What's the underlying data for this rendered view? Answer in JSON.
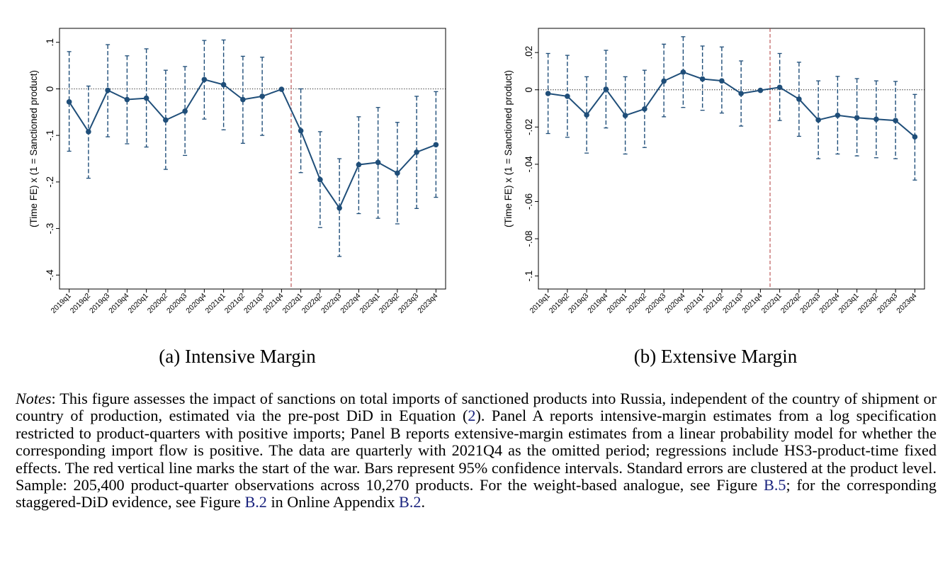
{
  "chart_data": [
    {
      "type": "line",
      "caption": "(a) Intensive Margin",
      "ylabel": "(Time FE) x (1 = Sanctioned product)",
      "categories": [
        "2019q1",
        "2019q2",
        "2019q3",
        "2019q4",
        "2020q1",
        "2020q2",
        "2020q3",
        "2020q4",
        "2021q1",
        "2021q2",
        "2021q3",
        "2021q4",
        "2022q1",
        "2022q2",
        "2022q3",
        "2022q4",
        "2023q1",
        "2023q2",
        "2023q3",
        "2023q4"
      ],
      "values": [
        -0.028,
        -0.092,
        -0.003,
        -0.023,
        -0.02,
        -0.067,
        -0.048,
        0.02,
        0.009,
        -0.023,
        -0.016,
        -0.001,
        -0.09,
        -0.195,
        -0.256,
        -0.163,
        -0.158,
        -0.181,
        -0.136,
        -0.12
      ],
      "ci_low": [
        -0.134,
        -0.192,
        -0.103,
        -0.118,
        -0.125,
        -0.173,
        -0.143,
        -0.065,
        -0.088,
        -0.117,
        -0.1,
        -0.001,
        -0.18,
        -0.298,
        -0.36,
        -0.268,
        -0.278,
        -0.29,
        -0.257,
        -0.233
      ],
      "ci_high": [
        0.08,
        0.006,
        0.095,
        0.071,
        0.086,
        0.04,
        0.048,
        0.104,
        0.105,
        0.07,
        0.068,
        -0.001,
        0.0,
        -0.092,
        -0.15,
        -0.06,
        -0.04,
        -0.072,
        -0.016,
        -0.006
      ],
      "ylim": [
        -0.43,
        0.13
      ],
      "yticks": [
        0.1,
        0,
        -0.1,
        -0.2,
        -0.3,
        -0.4
      ],
      "ytick_labels": [
        ".1",
        "0",
        "-.1",
        "-.2",
        "-.3",
        "-.4"
      ],
      "event_category": "2022q1",
      "line_color": "#1f4e79",
      "event_color": "#b03a3a"
    },
    {
      "type": "line",
      "caption": "(b) Extensive Margin",
      "ylabel": "(Time FE) x (1 = Sanctioned product)",
      "categories": [
        "2019q1",
        "2019q2",
        "2019q3",
        "2019q4",
        "2020q1",
        "2020q2",
        "2020q3",
        "2020q4",
        "2021q1",
        "2021q2",
        "2021q3",
        "2021q4",
        "2022q1",
        "2022q2",
        "2022q3",
        "2022q4",
        "2023q1",
        "2023q2",
        "2023q3",
        "2023q4"
      ],
      "values": [
        -0.002,
        -0.0035,
        -0.0135,
        0.0003,
        -0.0138,
        -0.0103,
        0.0047,
        0.0095,
        0.0058,
        0.0048,
        -0.002,
        -0.0003,
        0.0013,
        -0.005,
        -0.0162,
        -0.0137,
        -0.015,
        -0.0158,
        -0.0165,
        -0.0253
      ],
      "ci_low": [
        -0.0235,
        -0.0255,
        -0.034,
        -0.0205,
        -0.0345,
        -0.031,
        -0.0145,
        -0.0095,
        -0.011,
        -0.0125,
        -0.0195,
        -0.0003,
        -0.0165,
        -0.025,
        -0.037,
        -0.0345,
        -0.0355,
        -0.0365,
        -0.037,
        -0.0485
      ],
      "ci_high": [
        0.0195,
        0.0185,
        0.007,
        0.0212,
        0.007,
        0.0105,
        0.0245,
        0.0285,
        0.0235,
        0.023,
        0.0155,
        -0.0003,
        0.0195,
        0.0148,
        0.0048,
        0.0072,
        0.006,
        0.0048,
        0.0045,
        -0.0025
      ],
      "ylim": [
        -0.107,
        0.033
      ],
      "yticks": [
        0.02,
        0,
        -0.02,
        -0.04,
        -0.06,
        -0.08,
        -0.1
      ],
      "ytick_labels": [
        ".02",
        "0",
        "-.02",
        "-.04",
        "-.06",
        "-.08",
        "-.1"
      ],
      "event_category": "2022q1",
      "line_color": "#1f4e79",
      "event_color": "#b03a3a"
    }
  ],
  "notes": {
    "label": "Notes",
    "p1": ": This figure assesses the impact of sanctions on total imports of sanctioned products into Russia, independent of the country of shipment or country of production, estimated via the pre-post DiD in Equation (",
    "ref1": "2",
    "p2": "). Panel A reports intensive-margin estimates from a log specification restricted to product-quarters with positive imports; Panel B reports extensive-margin estimates from a linear probability model for whether the corresponding import flow is positive. The data are quarterly with 2021Q4 as the omitted period; regressions include HS3-product-time fixed effects. The red vertical line marks the start of the war. Bars represent 95% confidence intervals. Standard errors are clustered at the product level. Sample: 205,400 product-quarter observations across 10,270 products. For the weight-based analogue, see Figure ",
    "ref2": "B.5",
    "p3": "; for the corresponding staggered-DiD evidence, see Figure ",
    "ref3": "B.2",
    "p4": " in Online Appendix ",
    "ref4": "B.2",
    "p5": "."
  }
}
